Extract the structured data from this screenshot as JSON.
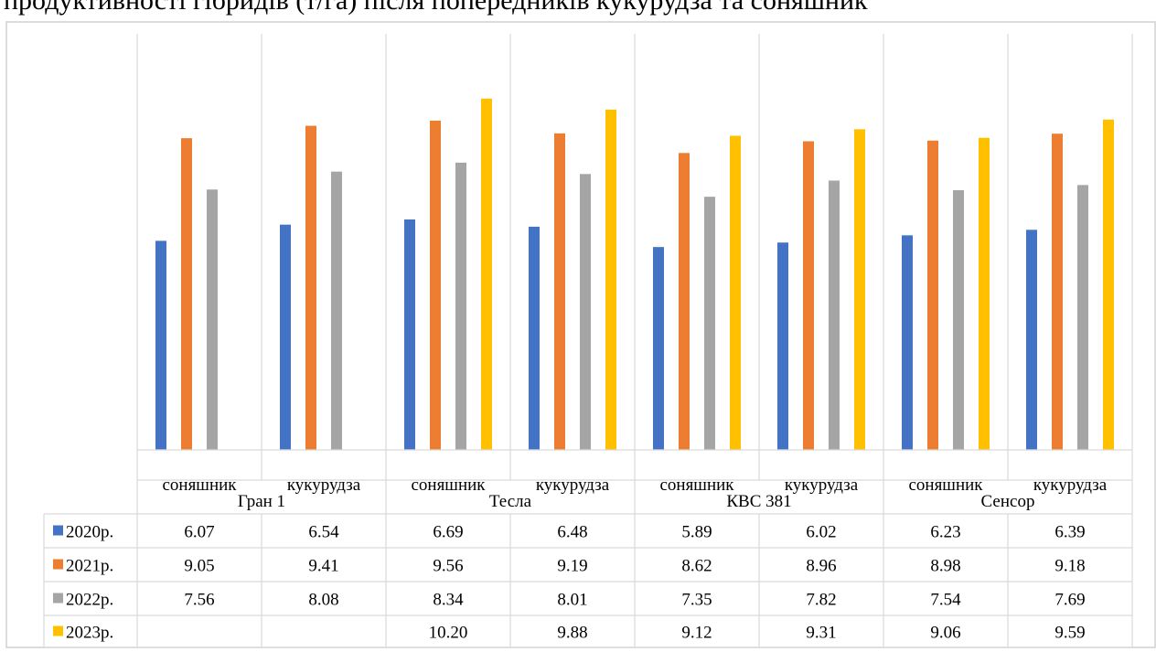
{
  "header_fragment": "продуктивності гібридів (т/га) після попередників кукурудза та соняшник",
  "chart_data": {
    "type": "bar",
    "groups": [
      "Гран 1",
      "Тесла",
      "КВС 381",
      "Сенсор"
    ],
    "subcategories": [
      "соняшник",
      "кукурудза"
    ],
    "categories": [
      "Гран 1 соняшник",
      "Гран 1 кукурудза",
      "Тесла соняшник",
      "Тесла кукурудза",
      "КВС 381 соняшник",
      "КВС 381 кукурудза",
      "Сенсор соняшник",
      "Сенсор кукурудза"
    ],
    "series": [
      {
        "name": "2020р.",
        "color": "#4472C4",
        "values": [
          6.07,
          6.54,
          6.69,
          6.48,
          5.89,
          6.02,
          6.23,
          6.39
        ]
      },
      {
        "name": "2021р.",
        "color": "#ED7D31",
        "values": [
          9.05,
          9.41,
          9.56,
          9.19,
          8.62,
          8.96,
          8.98,
          9.18
        ]
      },
      {
        "name": "2022р.",
        "color": "#A5A5A5",
        "values": [
          7.56,
          8.08,
          8.34,
          8.01,
          7.35,
          7.82,
          7.54,
          7.69
        ]
      },
      {
        "name": "2023р.",
        "color": "#FFC000",
        "values": [
          null,
          null,
          10.2,
          9.88,
          9.12,
          9.31,
          9.06,
          9.59
        ]
      }
    ],
    "table_text": [
      [
        "6.07",
        "6.54",
        "6.69",
        "6.48",
        "5.89",
        "6.02",
        "6.23",
        "6.39"
      ],
      [
        "9.05",
        "9.41",
        "9.56",
        "9.19",
        "8.62",
        "8.96",
        "8.98",
        "9.18"
      ],
      [
        "7.56",
        "8.08",
        "8.34",
        "8.01",
        "7.35",
        "7.82",
        "7.54",
        "7.69"
      ],
      [
        "",
        "",
        "10.20",
        "9.88",
        "9.12",
        "9.31",
        "9.06",
        "9.59"
      ]
    ],
    "ylim": [
      0,
      12
    ],
    "grid": false,
    "legend": "data-table"
  }
}
